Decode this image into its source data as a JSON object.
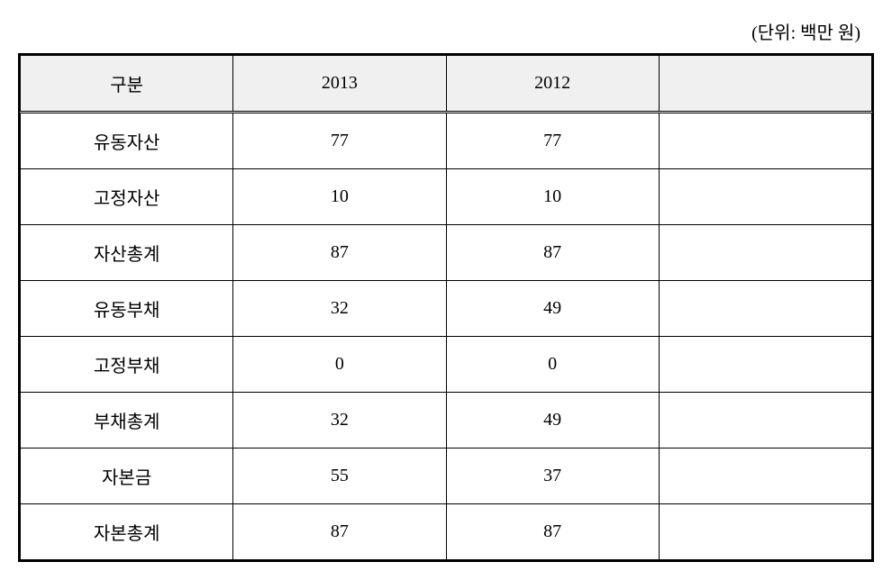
{
  "unit_label": "(단위: 백만 원)",
  "table": {
    "columns": [
      "구분",
      "2013",
      "2012",
      ""
    ],
    "column_widths": [
      "25%",
      "25%",
      "25%",
      "25%"
    ],
    "header_background": "#f0f0f0",
    "body_background": "#ffffff",
    "border_color": "#000000",
    "outer_border_width": 2,
    "inner_border_width": 1,
    "text_align": "center",
    "font_size": 20,
    "text_color": "#000000",
    "cell_padding": "16px 8px",
    "rows": [
      {
        "label": "유동자산",
        "y2013": "77",
        "y2012": "77",
        "extra": ""
      },
      {
        "label": "고정자산",
        "y2013": "10",
        "y2012": "10",
        "extra": ""
      },
      {
        "label": "자산총계",
        "y2013": "87",
        "y2012": "87",
        "extra": ""
      },
      {
        "label": "유동부채",
        "y2013": "32",
        "y2012": "49",
        "extra": ""
      },
      {
        "label": "고정부채",
        "y2013": "0",
        "y2012": "0",
        "extra": ""
      },
      {
        "label": "부채총계",
        "y2013": "32",
        "y2012": "49",
        "extra": ""
      },
      {
        "label": "자본금",
        "y2013": "55",
        "y2012": "37",
        "extra": ""
      },
      {
        "label": "자본총계",
        "y2013": "87",
        "y2012": "87",
        "extra": ""
      }
    ]
  }
}
